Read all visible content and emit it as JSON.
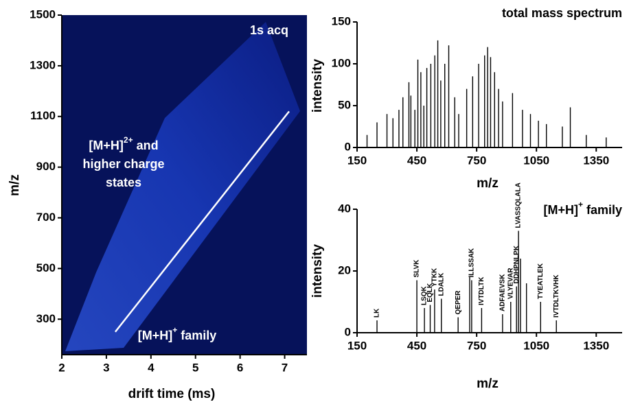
{
  "chart_data": [
    {
      "type": "heatmap",
      "xlabel": "drift time (ms)",
      "ylabel": "m/z",
      "xlim": [
        2,
        7.5
      ],
      "xticks": [
        2,
        3,
        4,
        5,
        6,
        7
      ],
      "ylim": [
        160,
        1500
      ],
      "yticks": [
        300,
        500,
        700,
        900,
        1100,
        1300,
        1500
      ],
      "line": {
        "x": [
          3.2,
          7.1
        ],
        "y": [
          250,
          1120
        ],
        "color": "#ffffff"
      },
      "annotations": [
        {
          "text": "1s acq"
        },
        {
          "text": "[M+H]",
          "sup": "2+",
          "after": " and"
        },
        {
          "text": "higher charge"
        },
        {
          "text": "states"
        },
        {
          "text": "[M+H]",
          "sup": "+",
          "after": " family"
        }
      ]
    },
    {
      "type": "spectrum",
      "title": "total mass spectrum",
      "xlabel": "m/z",
      "ylabel": "intensity",
      "xlim": [
        150,
        1480
      ],
      "xticks": [
        150,
        450,
        750,
        1050,
        1350
      ],
      "ylim": [
        0,
        150
      ],
      "yticks": [
        0,
        50,
        100,
        150
      ],
      "color": "#000000",
      "x": [
        200,
        250,
        300,
        330,
        360,
        380,
        410,
        420,
        440,
        455,
        470,
        485,
        500,
        520,
        540,
        555,
        570,
        590,
        610,
        640,
        660,
        700,
        730,
        760,
        790,
        805,
        820,
        840,
        860,
        880,
        930,
        980,
        1020,
        1060,
        1100,
        1180,
        1220,
        1300,
        1400
      ],
      "values": [
        15,
        30,
        40,
        35,
        45,
        60,
        78,
        62,
        45,
        105,
        90,
        50,
        95,
        100,
        110,
        128,
        80,
        100,
        122,
        60,
        40,
        70,
        85,
        100,
        110,
        120,
        108,
        90,
        70,
        55,
        65,
        45,
        40,
        32,
        28,
        25,
        48,
        15,
        12
      ]
    },
    {
      "type": "spectrum",
      "title": {
        "text": "[M+H]",
        "sup": "+",
        "after": " family"
      },
      "xlabel": "m/z",
      "ylabel": "intensity",
      "xlim": [
        150,
        1480
      ],
      "xticks": [
        150,
        450,
        750,
        1050,
        1350
      ],
      "ylim": [
        0,
        40
      ],
      "yticks": [
        0,
        20,
        40
      ],
      "color": "#000000",
      "x": [
        250,
        450,
        488,
        517,
        539,
        573,
        657,
        715,
        725,
        775,
        880,
        921,
        950,
        960,
        970,
        1000,
        1071,
        1150
      ],
      "values": [
        4,
        17,
        8,
        9,
        14,
        11,
        5,
        18,
        17,
        8,
        6,
        10,
        15,
        33,
        24,
        16,
        10,
        4
      ],
      "labels": [
        "LK",
        "SLVK",
        "LSQK",
        "EQLK",
        "YTKK",
        "LDALK",
        "QEPER",
        null,
        "ILLSSAK",
        "IVTDLTK",
        "ADFAEVSK",
        "VLYEVAR",
        "DDHPNLPK",
        "LVASSQLALA",
        null,
        null,
        "TYEATLEK",
        "IVTDLTKVHK"
      ]
    }
  ]
}
